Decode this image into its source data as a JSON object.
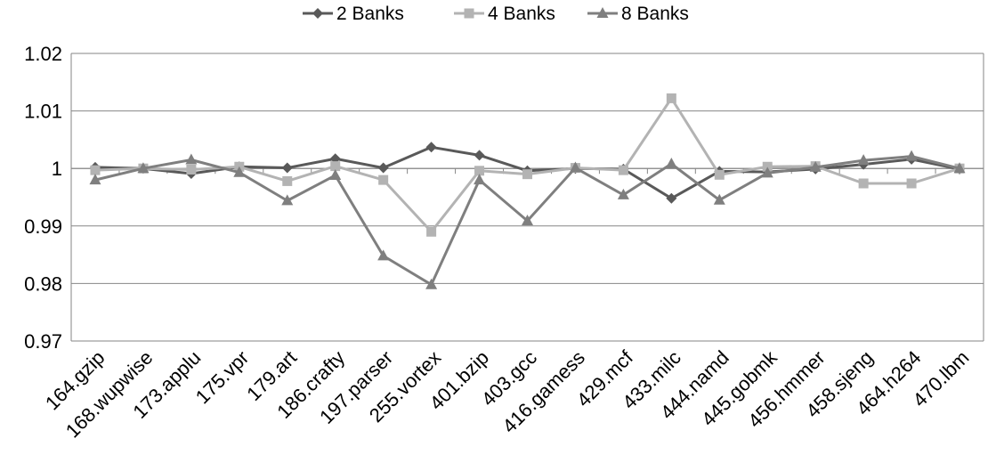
{
  "chart_data": {
    "type": "line",
    "title": "",
    "xlabel": "",
    "ylabel": "",
    "ylim": [
      0.97,
      1.02
    ],
    "yticks": [
      "0.97",
      "0.98",
      "0.99",
      "1",
      "1.01",
      "1.02"
    ],
    "ytick_values": [
      0.97,
      0.98,
      0.99,
      1.0,
      1.01,
      1.02
    ],
    "grid": "horizontal",
    "legend_position": "top",
    "categories": [
      "164.gzip",
      "168.wupwise",
      "173.applu",
      "175.vpr",
      "179.art",
      "186.crafty",
      "197.parser",
      "255.vortex",
      "401.bzip",
      "403.gcc",
      "416.gamess",
      "429.mcf",
      "433.milc",
      "444.namd",
      "445.gobmk",
      "456.hmmer",
      "458.sjeng",
      "464.h264",
      "470.lbm"
    ],
    "series": [
      {
        "name": "2 Banks",
        "color": "#595959",
        "marker": "diamond",
        "values": [
          1.0002,
          1.0,
          0.9991,
          1.0003,
          1.0001,
          1.0017,
          1.0001,
          1.0037,
          1.0023,
          0.9996,
          1.0,
          0.9999,
          0.9948,
          0.9995,
          0.9994,
          0.9999,
          1.0007,
          1.0016,
          0.9999
        ]
      },
      {
        "name": "4 Banks",
        "color": "#b3b3b3",
        "marker": "square",
        "values": [
          0.9997,
          1.0,
          0.9998,
          1.0003,
          0.9978,
          1.0004,
          0.998,
          0.989,
          0.9996,
          0.999,
          1.0001,
          0.9997,
          1.0122,
          0.9989,
          1.0003,
          1.0004,
          0.9974,
          0.9974,
          1.0
        ]
      },
      {
        "name": "8 Banks",
        "color": "#7f7f7f",
        "marker": "triangle",
        "values": [
          0.998,
          1.0,
          1.0015,
          0.9993,
          0.9944,
          0.9988,
          0.9848,
          0.9798,
          0.998,
          0.9909,
          1.0001,
          0.9954,
          1.0008,
          0.9945,
          0.9992,
          1.0002,
          1.0014,
          1.0021,
          1.0
        ]
      }
    ]
  }
}
